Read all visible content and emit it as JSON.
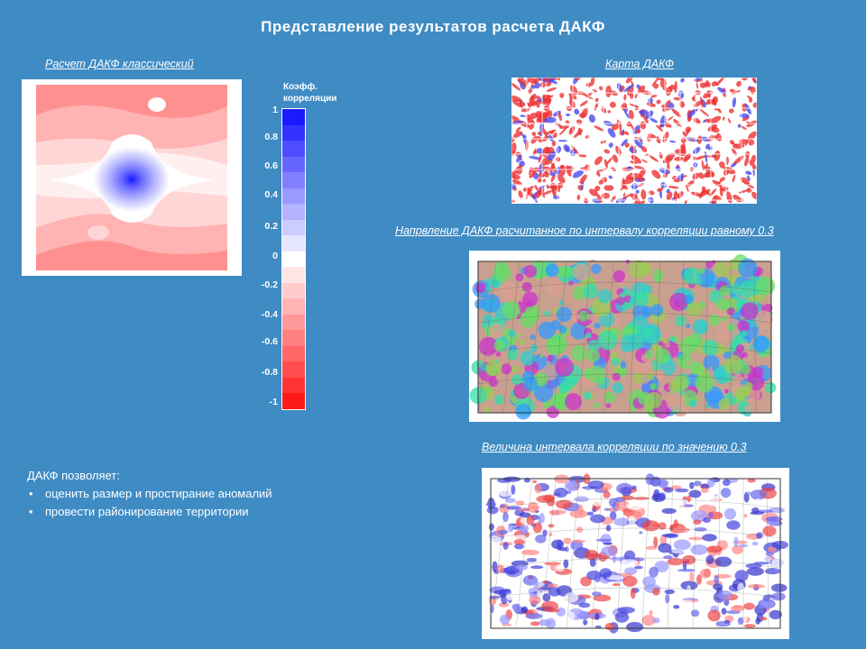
{
  "slide": {
    "title": "Представление результатов расчета ДАКФ"
  },
  "panels": {
    "classic": {
      "caption": "Расчет ДАКФ классический"
    },
    "map": {
      "caption": "Карта ДАКФ"
    },
    "direction": {
      "caption": "Напрвление ДАКФ расчитанное по интервалу корреляции равному 0.3"
    },
    "interval": {
      "caption": "Величина интервала корреляции  по значению 0.3"
    }
  },
  "legend": {
    "title_line1": "Коэфф.",
    "title_line2": "корреляции",
    "ticks": [
      "1",
      "0.8",
      "0.6",
      "0.4",
      "0.2",
      "0",
      "-0.2",
      "-0.4",
      "-0.6",
      "-0.8",
      "-1"
    ],
    "colors_top_to_bottom": [
      "#1a1aff",
      "#3333ff",
      "#4d4dff",
      "#6666ff",
      "#8080ff",
      "#9999ff",
      "#b3b3ff",
      "#ccccff",
      "#e6e6ff",
      "#ffffff",
      "#ffe6e6",
      "#ffcccc",
      "#ffb3b3",
      "#ff9999",
      "#ff8080",
      "#ff6666",
      "#ff4d4d",
      "#ff3333",
      "#ff1a1a"
    ]
  },
  "notes": {
    "heading": "ДАКФ позволяет:",
    "items": [
      "оценить размер и простирание аномалий",
      "провести районирование территории"
    ]
  }
}
